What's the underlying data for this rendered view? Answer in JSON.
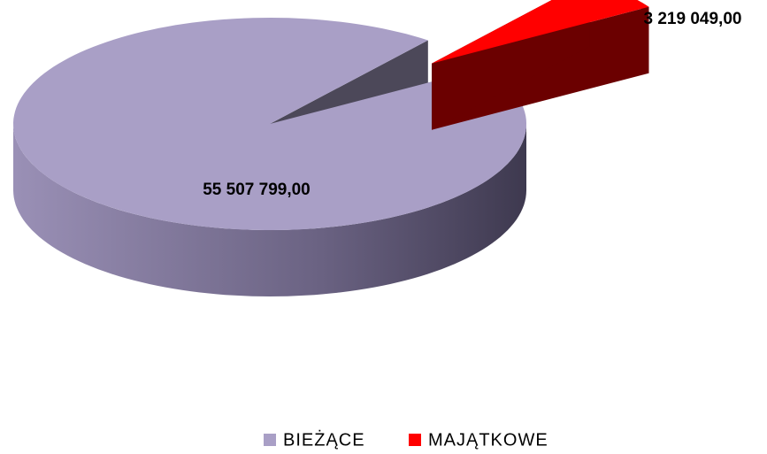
{
  "chart_data": {
    "type": "pie",
    "categories": [
      "BIEŻĄCE",
      "MAJĄTKOWE"
    ],
    "values": [
      55507799,
      3219049
    ],
    "value_labels": [
      "55 507 799,00",
      "3 219 049,00"
    ],
    "colors": [
      "#a99fc6",
      "#ff0000"
    ],
    "legend": "bottom"
  }
}
